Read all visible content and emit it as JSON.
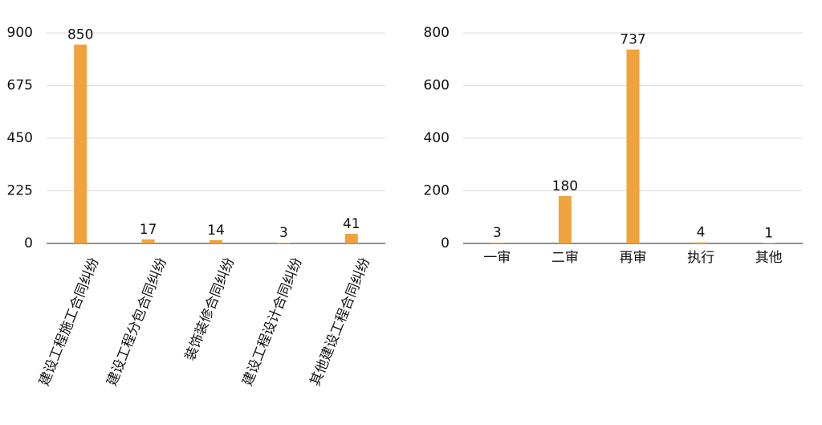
{
  "chart_data": [
    {
      "type": "bar",
      "categories": [
        "建设工程施工合同纠纷",
        "建设工程分包合同纠纷",
        "装饰装修合同纠纷",
        "建设工程设计合同纠纷",
        "其他建设工程合同纠纷"
      ],
      "values": [
        850,
        17,
        14,
        3,
        41
      ],
      "color": "#f0a23c",
      "ylim": [
        0,
        900
      ],
      "yticks": [
        0,
        225,
        450,
        675,
        900
      ],
      "grid": true
    },
    {
      "type": "bar",
      "categories": [
        "一审",
        "二审",
        "再审",
        "执行",
        "其他"
      ],
      "values": [
        3,
        180,
        737,
        4,
        1
      ],
      "color": "#f0a23c",
      "ylim": [
        0,
        800
      ],
      "yticks": [
        0,
        200,
        400,
        600,
        800
      ],
      "grid": true
    }
  ]
}
